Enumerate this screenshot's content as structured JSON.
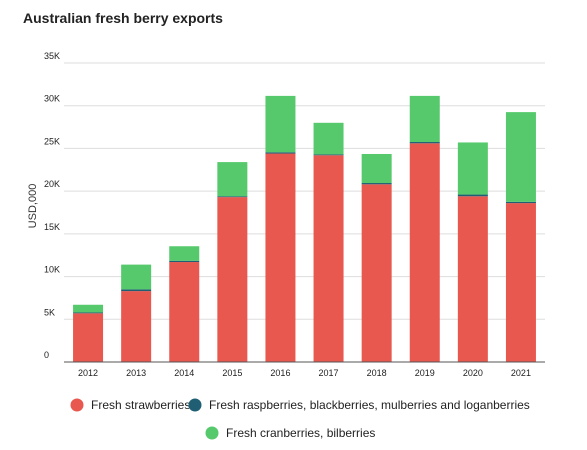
{
  "chart_data": {
    "type": "bar",
    "stacked": true,
    "title": "Australian fresh berry exports",
    "xlabel": "",
    "ylabel": "USD,000",
    "ylim": [
      0,
      35000
    ],
    "y_ticks": [
      "0",
      "5K",
      "10K",
      "15K",
      "20K",
      "25K",
      "30K",
      "35K"
    ],
    "grid": true,
    "legend_position": "bottom",
    "categories": [
      "2012",
      "2013",
      "2014",
      "2015",
      "2016",
      "2017",
      "2018",
      "2019",
      "2020",
      "2021"
    ],
    "series": [
      {
        "name": "Fresh strawberries",
        "color": "#e8584f",
        "values": [
          5700,
          8300,
          11700,
          19300,
          24400,
          24200,
          20800,
          25600,
          19400,
          18600
        ]
      },
      {
        "name": "Fresh raspberries, blackberries, mulberries and loganberries",
        "color": "#1f5e73",
        "values": [
          100,
          200,
          150,
          100,
          150,
          100,
          150,
          150,
          200,
          150
        ]
      },
      {
        "name": "Fresh cranberries, bilberries",
        "color": "#55c96b",
        "values": [
          900,
          2900,
          1700,
          4000,
          6600,
          3700,
          3400,
          5400,
          6100,
          10500
        ]
      }
    ]
  }
}
